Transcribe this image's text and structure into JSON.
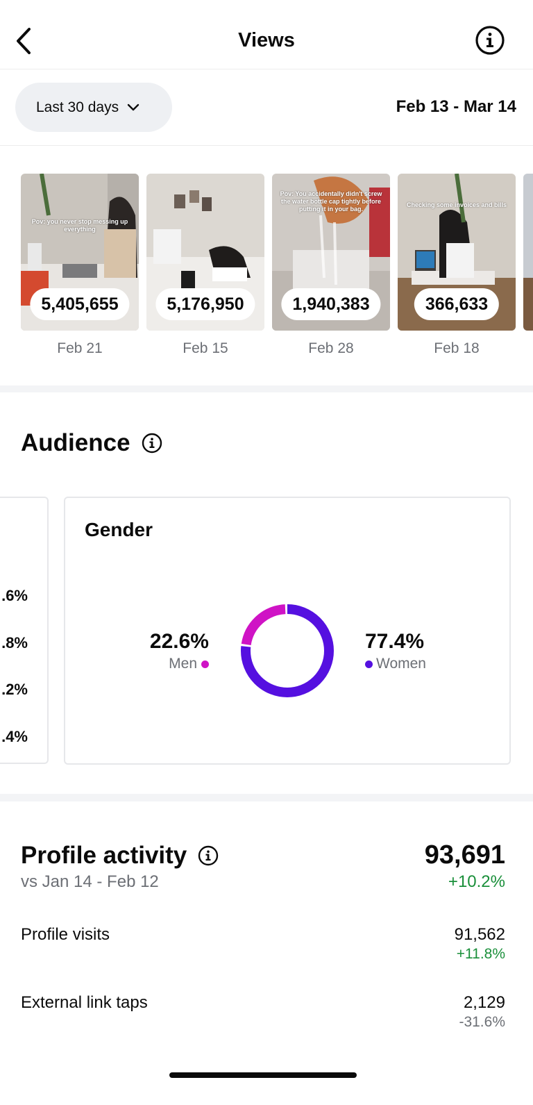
{
  "header": {
    "title": "Views"
  },
  "range": {
    "label": "Last 30 days",
    "dates": "Feb 13 - Mar 14"
  },
  "thumbnails": [
    {
      "count": "5,405,655",
      "date": "Feb 21",
      "caption": "Pov: you never stop messing up everything"
    },
    {
      "count": "5,176,950",
      "date": "Feb 15",
      "caption": ""
    },
    {
      "count": "1,940,383",
      "date": "Feb 28",
      "caption": "Pov: You accidentally didn't screw the water bottle cap tightly before putting it in your bag."
    },
    {
      "count": "366,633",
      "date": "Feb 18",
      "caption": "Checking some invoices and bills"
    }
  ],
  "audience": {
    "title": "Audience",
    "left_card_pcts": [
      ".6%",
      ".8%",
      ".2%",
      ".4%"
    ],
    "gender": {
      "title": "Gender",
      "men_pct": "22.6%",
      "men_label": "Men",
      "women_pct": "77.4%",
      "women_label": "Women",
      "men_fraction": 0.226,
      "colors": {
        "men": "#cf13c5",
        "women": "#5510e0"
      }
    }
  },
  "profile_activity": {
    "title": "Profile activity",
    "comparison": "vs Jan 14 - Feb 12",
    "total": "93,691",
    "total_change": "+10.2%",
    "rows": [
      {
        "label": "Profile visits",
        "value": "91,562",
        "change": "+11.8%"
      },
      {
        "label": "External link taps",
        "value": "2,129",
        "change": "-31.6%"
      }
    ]
  }
}
